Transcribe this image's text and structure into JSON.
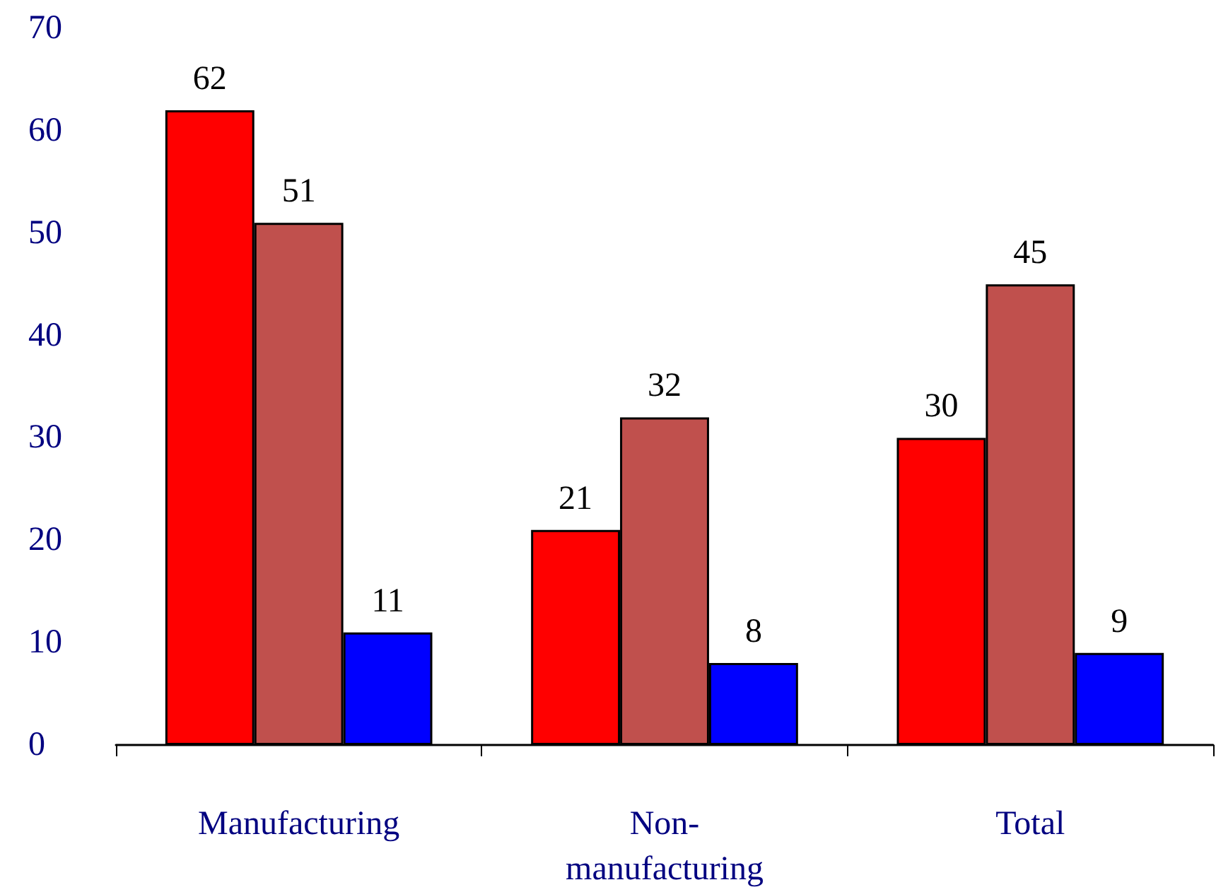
{
  "chart_data": {
    "type": "bar",
    "categories": [
      "Manufacturing",
      "Non-manufacturing",
      "Total"
    ],
    "series": [
      {
        "color": "#ff0000",
        "values": [
          62,
          21,
          30
        ]
      },
      {
        "color": "#c0504d",
        "values": [
          51,
          32,
          45
        ]
      },
      {
        "color": "#0000ff",
        "values": [
          11,
          8,
          9
        ]
      }
    ],
    "ylim": [
      0,
      70
    ],
    "yticks": [
      0,
      10,
      20,
      30,
      40,
      50,
      60,
      70
    ],
    "grid": false,
    "data_labels": true
  }
}
